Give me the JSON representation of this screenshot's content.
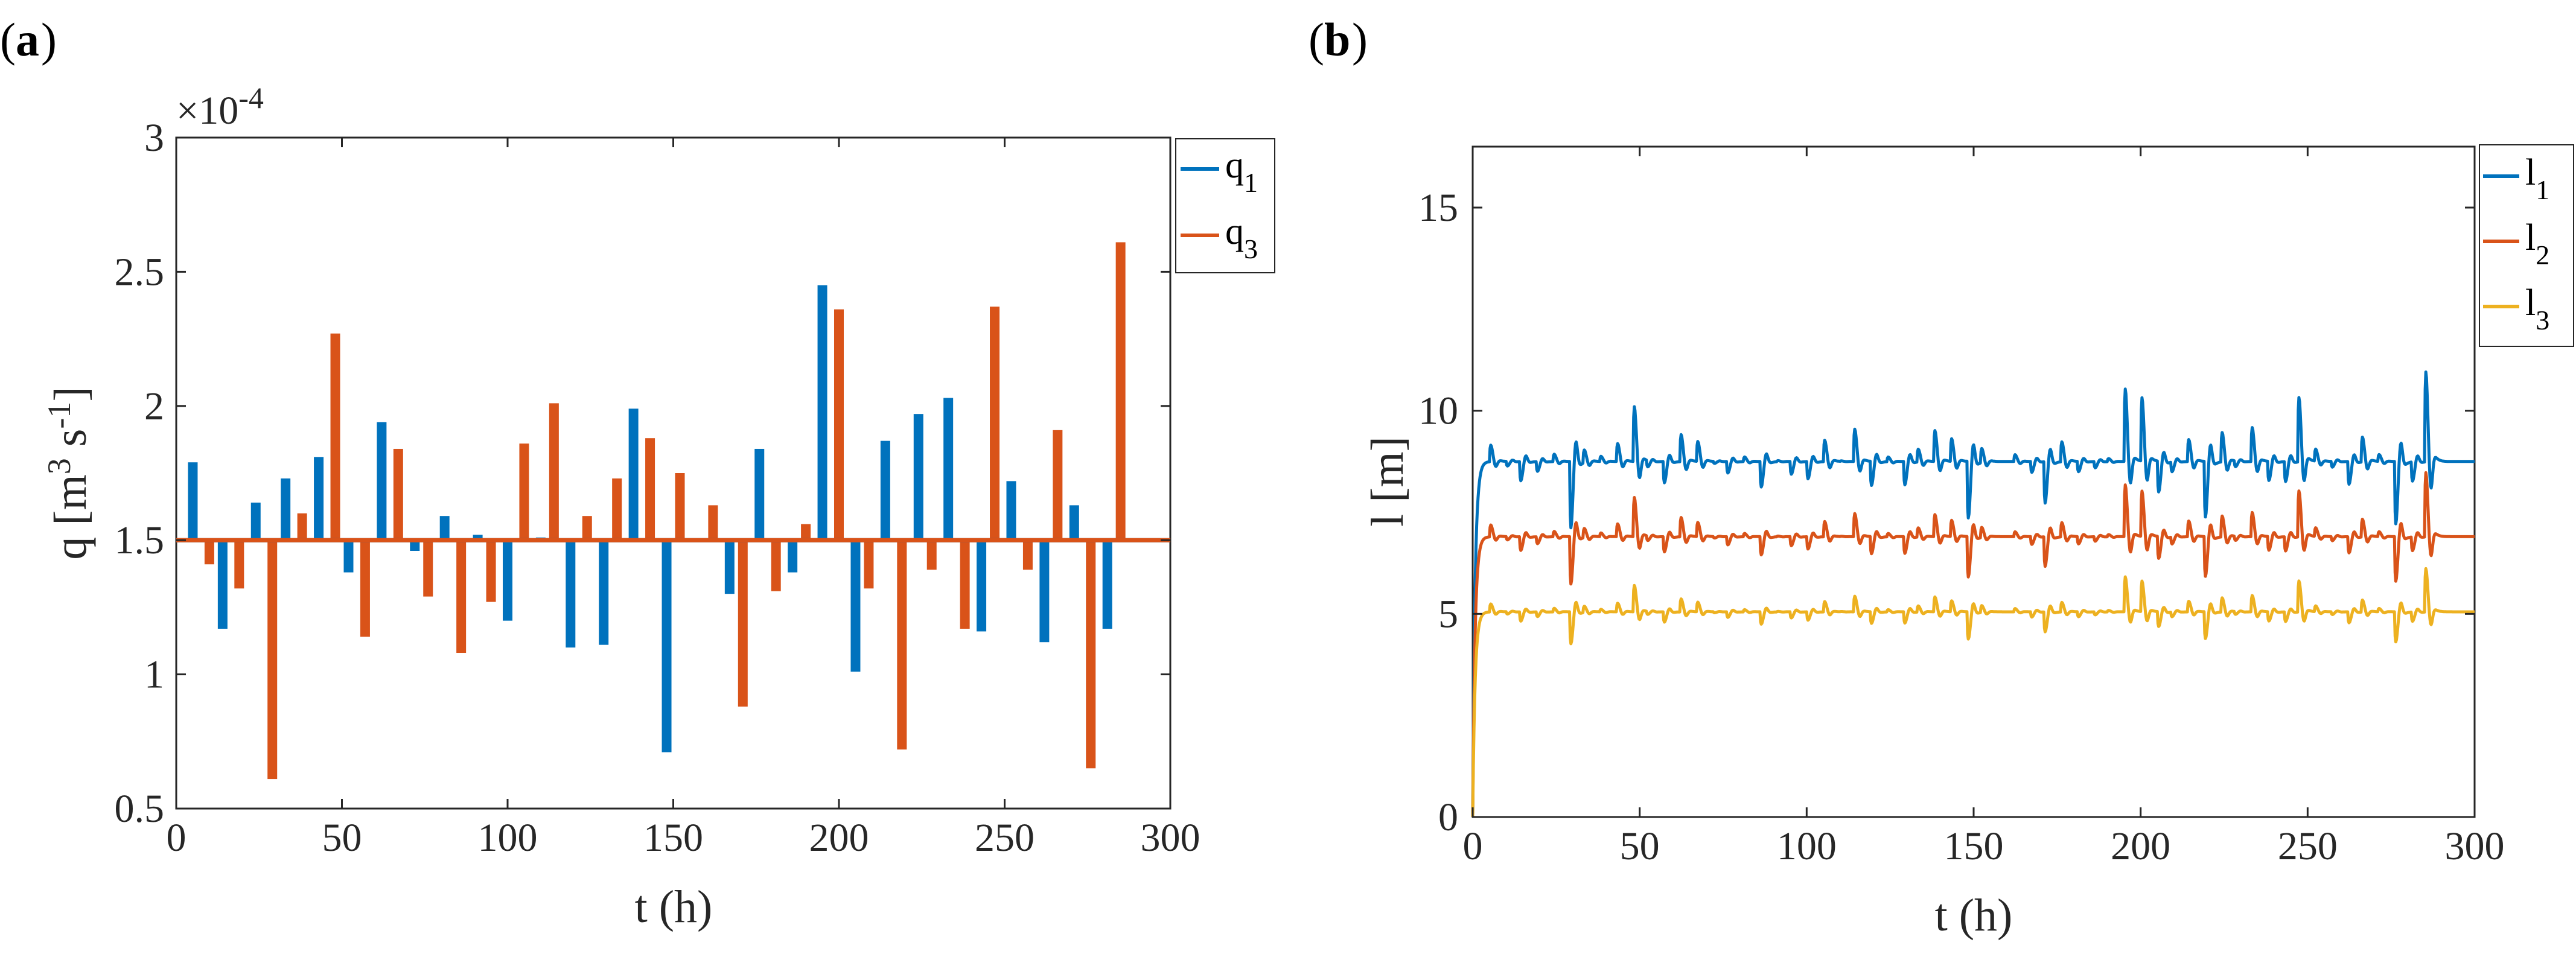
{
  "panel_labels": {
    "a": "a",
    "b": "b"
  },
  "chart_data": [
    {
      "id": "a",
      "type": "bar",
      "title": "",
      "xlabel": "t (h)",
      "ylabel": "q [m3 s-1]",
      "exponent_label": "×10-4",
      "xlim": [
        0,
        300
      ],
      "ylim": [
        0.5,
        3
      ],
      "baseline": 1.5,
      "xticks": [
        "0",
        "50",
        "100",
        "150",
        "200",
        "250",
        "300"
      ],
      "yticks": [
        "0.5",
        "1",
        "1.5",
        "2",
        "2.5",
        "3"
      ],
      "legend_position": "top-right-outside",
      "series": [
        {
          "name": "q1",
          "legend_main": "q",
          "legend_sub": "1",
          "color": "#0072BD",
          "x": [
            5,
            14,
            24,
            33,
            43,
            52,
            62,
            72,
            81,
            91,
            100,
            110,
            119,
            129,
            138,
            148,
            157,
            167,
            176,
            186,
            195,
            205,
            214,
            224,
            233,
            243,
            252,
            262,
            271,
            281
          ],
          "values": [
            1.79,
            1.17,
            1.64,
            1.73,
            1.81,
            1.38,
            1.94,
            1.46,
            1.59,
            1.52,
            1.2,
            1.51,
            1.1,
            1.11,
            1.99,
            0.71,
            1.5,
            1.3,
            1.84,
            1.38,
            2.45,
            1.01,
            1.87,
            1.97,
            2.03,
            1.16,
            1.72,
            1.12,
            1.63,
            1.17
          ]
        },
        {
          "name": "q3",
          "legend_main": "q",
          "legend_sub": "3",
          "color": "#D95319",
          "x": [
            10,
            19,
            29,
            38,
            48,
            57,
            67,
            76,
            86,
            95,
            105,
            114,
            124,
            133,
            143,
            152,
            162,
            171,
            181,
            190,
            200,
            209,
            219,
            228,
            238,
            247,
            257,
            266,
            276,
            285
          ],
          "values": [
            1.41,
            1.32,
            0.61,
            1.6,
            2.27,
            1.14,
            1.84,
            1.29,
            1.08,
            1.27,
            1.86,
            2.01,
            1.59,
            1.73,
            1.88,
            1.75,
            1.63,
            0.88,
            1.31,
            1.56,
            2.36,
            1.32,
            0.72,
            1.39,
            1.17,
            2.37,
            1.39,
            1.91,
            0.65,
            2.61
          ]
        }
      ]
    },
    {
      "id": "b",
      "type": "line",
      "title": "",
      "xlabel": "t (h)",
      "ylabel": "l [m]",
      "xlim": [
        0,
        300
      ],
      "ylim": [
        0,
        16.5
      ],
      "xticks": [
        "0",
        "50",
        "100",
        "150",
        "200",
        "250",
        "300"
      ],
      "yticks": [
        "0",
        "5",
        "10",
        "15"
      ],
      "legend_position": "top-right-outside",
      "series": [
        {
          "name": "l1",
          "legend_main": "l",
          "legend_sub": "1",
          "color": "#0072BD",
          "steady": 8.75,
          "base_step": 2.8
        },
        {
          "name": "l2",
          "legend_main": "l",
          "legend_sub": "2",
          "color": "#D95319",
          "steady": 6.9,
          "base_step": 2.0
        },
        {
          "name": "l3",
          "legend_main": "l",
          "legend_sub": "3",
          "color": "#EDB120",
          "steady": 5.05,
          "base_step": 1.35
        }
      ],
      "events": {
        "q1_times": [
          5,
          14,
          24,
          33,
          43,
          52,
          62,
          72,
          81,
          91,
          100,
          110,
          119,
          129,
          138,
          148,
          157,
          167,
          176,
          186,
          195,
          205,
          214,
          224,
          233,
          243,
          252,
          262,
          271,
          281
        ],
        "q1_dev": [
          0.29,
          -0.33,
          0.14,
          0.23,
          0.31,
          -0.12,
          0.44,
          -0.04,
          0.09,
          0.02,
          -0.3,
          0.01,
          -0.4,
          -0.39,
          0.49,
          -0.79,
          0.0,
          -0.2,
          0.34,
          -0.12,
          0.95,
          -0.49,
          0.37,
          0.47,
          0.53,
          -0.34,
          0.22,
          -0.38,
          0.13,
          -0.33
        ],
        "q3_times": [
          10,
          19,
          29,
          38,
          48,
          57,
          67,
          76,
          86,
          95,
          105,
          114,
          124,
          133,
          143,
          152,
          162,
          171,
          181,
          190,
          200,
          209,
          219,
          228,
          238,
          247,
          257,
          266,
          276,
          285
        ],
        "q3_dev": [
          -0.09,
          -0.18,
          -0.89,
          0.1,
          0.77,
          -0.36,
          0.34,
          -0.21,
          -0.42,
          -0.23,
          0.36,
          0.51,
          0.09,
          0.23,
          0.38,
          0.25,
          0.13,
          -0.62,
          -0.19,
          0.06,
          0.86,
          -0.18,
          -0.78,
          -0.11,
          -0.33,
          0.87,
          -0.11,
          0.41,
          -0.85,
          1.11
        ]
      }
    }
  ]
}
